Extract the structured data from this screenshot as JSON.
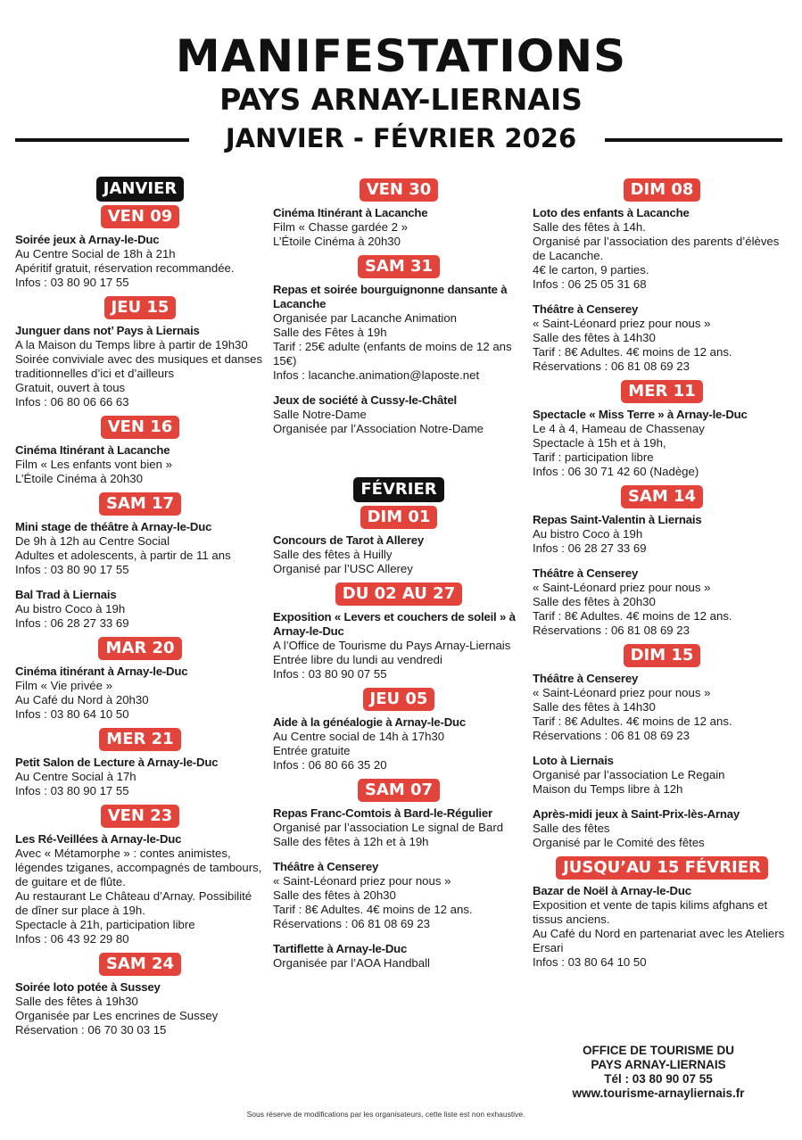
{
  "header": {
    "title": "MANIFESTATIONS",
    "subtitle": "PAYS ARNAY-LIERNAIS",
    "period": "JANVIER - FÉVRIER 2026"
  },
  "colors": {
    "badge_red": "#e2433a",
    "month_black": "#111111"
  },
  "columns": [
    [
      {
        "type": "month",
        "label": "JANVIER"
      },
      {
        "type": "day",
        "label": "VEN 09"
      },
      {
        "type": "event",
        "title": "Soirée jeux à Arnay-le-Duc",
        "lines": [
          "Au Centre Social de 18h à 21h",
          "Apéritif gratuit, réservation recommandée.",
          "Infos : 03 80 90 17 55"
        ]
      },
      {
        "type": "day",
        "label": "JEU 15"
      },
      {
        "type": "event",
        "title": "Junguer dans not’ Pays à Liernais",
        "lines": [
          "A la Maison du Temps libre à partir de 19h30",
          "Soirée conviviale avec des musiques et danses traditionnelles d’ici et d’ailleurs",
          "Gratuit, ouvert à tous",
          "Infos : 06 80 06 66 63"
        ]
      },
      {
        "type": "day",
        "label": "VEN 16"
      },
      {
        "type": "event",
        "title": "Cinéma Itinérant à Lacanche",
        "lines": [
          "Film « Les enfants vont bien »",
          "L’Étoile Cinéma à 20h30"
        ]
      },
      {
        "type": "day",
        "label": "SAM 17"
      },
      {
        "type": "event",
        "title": "Mini stage de théâtre à Arnay-le-Duc",
        "lines": [
          "De 9h à 12h au Centre Social",
          "Adultes et adolescents, à partir de 11 ans",
          "Infos : 03 80 90 17 55"
        ]
      },
      {
        "type": "event",
        "title": "Bal Trad à Liernais",
        "lines": [
          "Au bistro Coco à 19h",
          "Infos : 06 28 27 33 69"
        ]
      },
      {
        "type": "day",
        "label": "MAR 20"
      },
      {
        "type": "event",
        "title": "Cinéma itinérant à Arnay-le-Duc",
        "lines": [
          "Film « Vie privée »",
          "Au Café du Nord à 20h30",
          "Infos : 03 80 64 10 50"
        ]
      },
      {
        "type": "day",
        "label": "MER 21"
      },
      {
        "type": "event",
        "title": "Petit Salon de Lecture à Arnay-le-Duc",
        "lines": [
          "Au Centre Social à 17h",
          "Infos : 03 80 90 17 55"
        ]
      },
      {
        "type": "day",
        "label": "VEN 23"
      },
      {
        "type": "event",
        "title": "Les Ré-Veillées à Arnay-le-Duc",
        "lines": [
          "Avec « Métamorphe » : contes animistes, légendes tziganes, accompagnés de tambours, de guitare et de flûte.",
          "Au restaurant Le Château d’Arnay. Possibilité de dîner sur place à 19h.",
          "Spectacle à 21h, participation libre",
          "Infos : 06 43 92 29 80"
        ]
      },
      {
        "type": "day",
        "label": "SAM 24"
      },
      {
        "type": "event",
        "title": "Soirée loto potée à Sussey",
        "lines": [
          "Salle des fêtes à 19h30",
          "Organisée par Les encrines de Sussey",
          "Réservation : 06 70 30 03 15"
        ]
      }
    ],
    [
      {
        "type": "day",
        "label": "VEN 30"
      },
      {
        "type": "event",
        "title": "Cinéma Itinérant à Lacanche",
        "lines": [
          "Film « Chasse gardée 2 »",
          "L’Étoile Cinéma à 20h30"
        ]
      },
      {
        "type": "day",
        "label": "SAM 31"
      },
      {
        "type": "event",
        "title": "Repas et soirée bourguignonne dansante à Lacanche",
        "lines": [
          "Organisée par Lacanche Animation",
          "Salle des Fêtes à 19h",
          "Tarif : 25€ adulte (enfants de moins de 12 ans 15€)",
          "Infos : lacanche.animation@laposte.net"
        ]
      },
      {
        "type": "event",
        "title": "Jeux de société à Cussy-le-Châtel",
        "lines": [
          "Salle Notre-Dame",
          "Organisée par l’Association Notre-Dame"
        ]
      },
      {
        "type": "month",
        "label": "FÉVRIER",
        "cls": "feb"
      },
      {
        "type": "day",
        "label": "DIM 01"
      },
      {
        "type": "event",
        "title": "Concours de Tarot à Allerey",
        "lines": [
          "Salle des fêtes à Huilly",
          "Organisé par l’USC Allerey"
        ]
      },
      {
        "type": "day",
        "label": "DU 02 AU 27"
      },
      {
        "type": "event",
        "title": "Exposition « Levers et couchers de soleil » à Arnay-le-Duc",
        "lines": [
          "A l’Office de Tourisme du Pays Arnay-Liernais",
          "Entrée libre du lundi au vendredi",
          "Infos : 03 80 90 07 55"
        ]
      },
      {
        "type": "day",
        "label": "JEU 05"
      },
      {
        "type": "event",
        "title": "Aide à la généalogie à Arnay-le-Duc",
        "lines": [
          "Au Centre social de 14h à 17h30",
          "Entrée gratuite",
          "Infos : 06 80 66 35 20"
        ]
      },
      {
        "type": "day",
        "label": "SAM 07"
      },
      {
        "type": "event",
        "title": "Repas Franc-Comtois à Bard-le-Régulier",
        "lines": [
          "Organisé par l’association Le signal de Bard",
          "Salle des fêtes à 12h et à 19h"
        ]
      },
      {
        "type": "event",
        "title": "Théâtre à Censerey",
        "lines": [
          "« Saint-Léonard priez pour nous »",
          "Salle des fêtes à 20h30",
          "Tarif : 8€ Adultes. 4€ moins de 12 ans.",
          "Réservations : 06 81 08 69 23"
        ]
      },
      {
        "type": "event",
        "title": "Tartiflette à Arnay-le-Duc",
        "lines": [
          "Organisée par l’AOA Handball"
        ]
      }
    ],
    [
      {
        "type": "day",
        "label": "DIM 08"
      },
      {
        "type": "event",
        "title": "Loto des enfants à Lacanche",
        "lines": [
          "Salle des fêtes à 14h.",
          "Organisé par l’association des parents d’élèves de Lacanche.",
          "4€ le carton, 9 parties.",
          "Infos : 06 25 05 31 68"
        ]
      },
      {
        "type": "event",
        "title": "Théâtre à Censerey",
        "lines": [
          "« Saint-Léonard priez pour nous »",
          "Salle des fêtes à 14h30",
          "Tarif : 8€ Adultes. 4€ moins de 12 ans.",
          "Réservations : 06 81 08 69 23"
        ]
      },
      {
        "type": "day",
        "label": "MER 11"
      },
      {
        "type": "event",
        "title": "Spectacle « Miss Terre » à Arnay-le-Duc",
        "lines": [
          "Le 4 à 4, Hameau de Chassenay",
          "Spectacle à 15h et à 19h,",
          "Tarif : participation libre",
          "Infos : 06 30 71 42 60 (Nadège)"
        ]
      },
      {
        "type": "day",
        "label": "SAM 14"
      },
      {
        "type": "event",
        "title": "Repas Saint-Valentin à Liernais",
        "lines": [
          "Au bistro Coco à 19h",
          "Infos : 06 28 27 33 69"
        ]
      },
      {
        "type": "event",
        "title": "Théâtre à Censerey",
        "lines": [
          "« Saint-Léonard priez pour nous »",
          "Salle des fêtes à 20h30",
          "Tarif : 8€ Adultes. 4€ moins de 12 ans.",
          "Réservations : 06 81 08 69 23"
        ]
      },
      {
        "type": "day",
        "label": "DIM 15"
      },
      {
        "type": "event",
        "title": "Théâtre à Censerey",
        "lines": [
          "« Saint-Léonard priez pour nous »",
          "Salle des fêtes à 14h30",
          "Tarif : 8€ Adultes. 4€ moins de 12 ans.",
          "Réservations : 06 81 08 69 23"
        ]
      },
      {
        "type": "event",
        "title": "Loto à Liernais",
        "lines": [
          "Organisé par l’association Le Regain",
          "Maison du Temps libre à 12h"
        ]
      },
      {
        "type": "event",
        "title": "Après-midi jeux à Saint-Prix-lès-Arnay",
        "lines": [
          "Salle des fêtes",
          "Organisé par le Comité des fêtes"
        ]
      },
      {
        "type": "day",
        "label": "JUSQU’AU 15 FÉVRIER"
      },
      {
        "type": "event",
        "title": "Bazar de Noël à Arnay-le-Duc",
        "lines": [
          "Exposition et vente de tapis kilims afghans et tissus anciens.",
          "Au Café du Nord en partenariat avec les Ateliers Ersari",
          "Infos : 03 80 64 10 50"
        ]
      }
    ]
  ],
  "office": {
    "line1": "OFFICE DE TOURISME DU",
    "line2": "PAYS ARNAY-LIERNAIS",
    "phone": "Tél : 03 80 90 07 55",
    "website": "www.tourisme-arnayliernais.fr"
  },
  "disclaimer": "Sous réserve de modifications par les organisateurs, cette liste est non exhaustive."
}
